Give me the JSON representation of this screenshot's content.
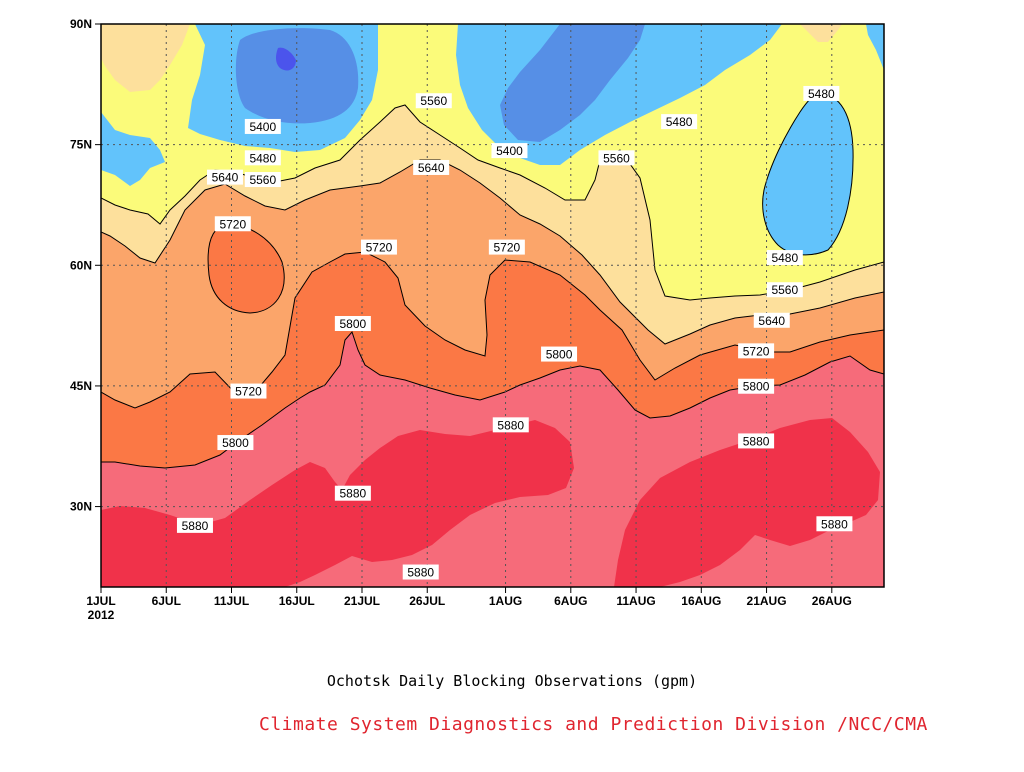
{
  "chart_data": {
    "type": "contour",
    "subtitle": "Ochotsk Daily Blocking Observations (gpm)",
    "credit": "Climate System Diagnostics and Prediction Division /NCC/CMA",
    "x_tick_labels": [
      "1JUL",
      "6JUL",
      "11JUL",
      "16JUL",
      "21JUL",
      "26JUL",
      "1AUG",
      "6AUG",
      "11AUG",
      "16AUG",
      "21AUG",
      "26AUG"
    ],
    "x_year_label": "2012",
    "y_tick_labels": [
      "30N",
      "45N",
      "60N",
      "75N",
      "90N"
    ],
    "xlim": [
      "2012-07-01",
      "2012-08-30"
    ],
    "ylim": [
      20,
      90
    ],
    "grid": true,
    "levels": [
      5400,
      5480,
      5560,
      5640,
      5720,
      5800,
      5880
    ],
    "band_colors": {
      "below_5400": "#4b54ec",
      "5400_5480": "#568fe6",
      "5480_5560": "#62c3fb",
      "5560_5640": "#fbfb7a",
      "5640_5720": "#fde09c",
      "5720_5800": "#fba56a",
      "5800_5880": "#fb7845",
      "5880_5960": "#f66b7a",
      "above_5960": "#f0324a"
    },
    "contour_labels": [
      {
        "value": "5400",
        "day": 12.4,
        "lat": 77.2
      },
      {
        "value": "5400",
        "day": 31.3,
        "lat": 74.2
      },
      {
        "value": "5480",
        "day": 12.4,
        "lat": 73.3
      },
      {
        "value": "5480",
        "day": 44.3,
        "lat": 77.8
      },
      {
        "value": "5480",
        "day": 55.2,
        "lat": 81.3
      },
      {
        "value": "5480",
        "day": 52.4,
        "lat": 60.9
      },
      {
        "value": "5560",
        "day": 12.4,
        "lat": 70.6
      },
      {
        "value": "5560",
        "day": 25.5,
        "lat": 80.4
      },
      {
        "value": "5560",
        "day": 39.5,
        "lat": 73.3
      },
      {
        "value": "5560",
        "day": 52.4,
        "lat": 56.9
      },
      {
        "value": "5640",
        "day": 9.5,
        "lat": 70.9
      },
      {
        "value": "5640",
        "day": 25.3,
        "lat": 72.1
      },
      {
        "value": "5640",
        "day": 51.4,
        "lat": 53.1
      },
      {
        "value": "5720",
        "day": 10.1,
        "lat": 65.1
      },
      {
        "value": "5720",
        "day": 21.3,
        "lat": 62.2
      },
      {
        "value": "5720",
        "day": 31.1,
        "lat": 62.2
      },
      {
        "value": "5720",
        "day": 11.3,
        "lat": 44.3
      },
      {
        "value": "5720",
        "day": 50.2,
        "lat": 49.3
      },
      {
        "value": "5800",
        "day": 19.3,
        "lat": 52.7
      },
      {
        "value": "5800",
        "day": 35.1,
        "lat": 48.9
      },
      {
        "value": "5800",
        "day": 10.3,
        "lat": 37.9
      },
      {
        "value": "5800",
        "day": 50.2,
        "lat": 44.9
      },
      {
        "value": "5880",
        "day": 31.4,
        "lat": 40.1
      },
      {
        "value": "5880",
        "day": 7.2,
        "lat": 27.6
      },
      {
        "value": "5880",
        "day": 19.3,
        "lat": 31.6
      },
      {
        "value": "5880",
        "day": 24.5,
        "lat": 21.8
      },
      {
        "value": "5880",
        "day": 50.2,
        "lat": 38.1
      },
      {
        "value": "5880",
        "day": 56.2,
        "lat": 27.8
      }
    ]
  }
}
